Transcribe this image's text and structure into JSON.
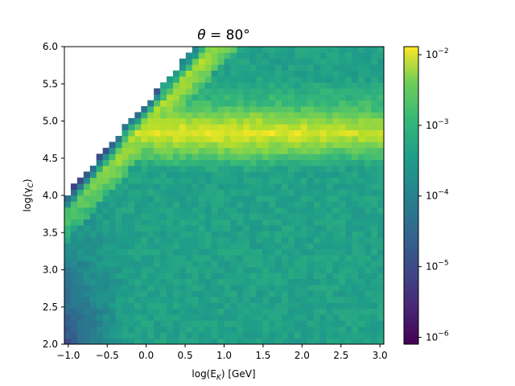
{
  "chart_data": {
    "type": "heatmap",
    "title_prefix": "θ",
    "title_suffix": " = 80°",
    "xlabel": "log(E",
    "xlabel_sub": "K",
    "xlabel_unit": ") [GeV]",
    "ylabel": "log(γ",
    "ylabel_sub": "C",
    "ylabel_close": ")",
    "xlim": [
      -1.05,
      3.05
    ],
    "ylim": [
      2.0,
      6.0
    ],
    "x_ticks": [
      -1.0,
      -0.5,
      0.0,
      0.5,
      1.0,
      1.5,
      2.0,
      2.5,
      3.0
    ],
    "x_tick_labels": [
      "−1.0",
      "−0.5",
      "0.0",
      "0.5",
      "1.0",
      "1.5",
      "2.0",
      "2.5",
      "3.0"
    ],
    "y_ticks": [
      2.0,
      2.5,
      3.0,
      3.5,
      4.0,
      4.5,
      5.0,
      5.5,
      6.0
    ],
    "y_tick_labels": [
      "2.0",
      "2.5",
      "3.0",
      "3.5",
      "4.0",
      "4.5",
      "5.0",
      "5.5",
      "6.0"
    ],
    "grid": false,
    "bins": {
      "nx": 50,
      "ny": 50
    },
    "colorbar": {
      "scale": "log",
      "range": [
        8e-07,
        0.013
      ],
      "colormap": "viridis",
      "ticks": [
        1e-06,
        1e-05,
        0.0001,
        0.001,
        0.01
      ],
      "tick_mantissa": [
        "10",
        "10",
        "10",
        "10",
        "10"
      ],
      "tick_exponent": [
        "−6",
        "−5",
        "−4",
        "−3",
        "−2"
      ]
    },
    "features": {
      "ridge_log_gamma": 4.85,
      "ridge_peak_value": 0.012,
      "background_value": 0.0002,
      "upper_boundary": "empty region above log(γ) ≈ 4 + 1.2·(log E + 1), white"
    }
  }
}
